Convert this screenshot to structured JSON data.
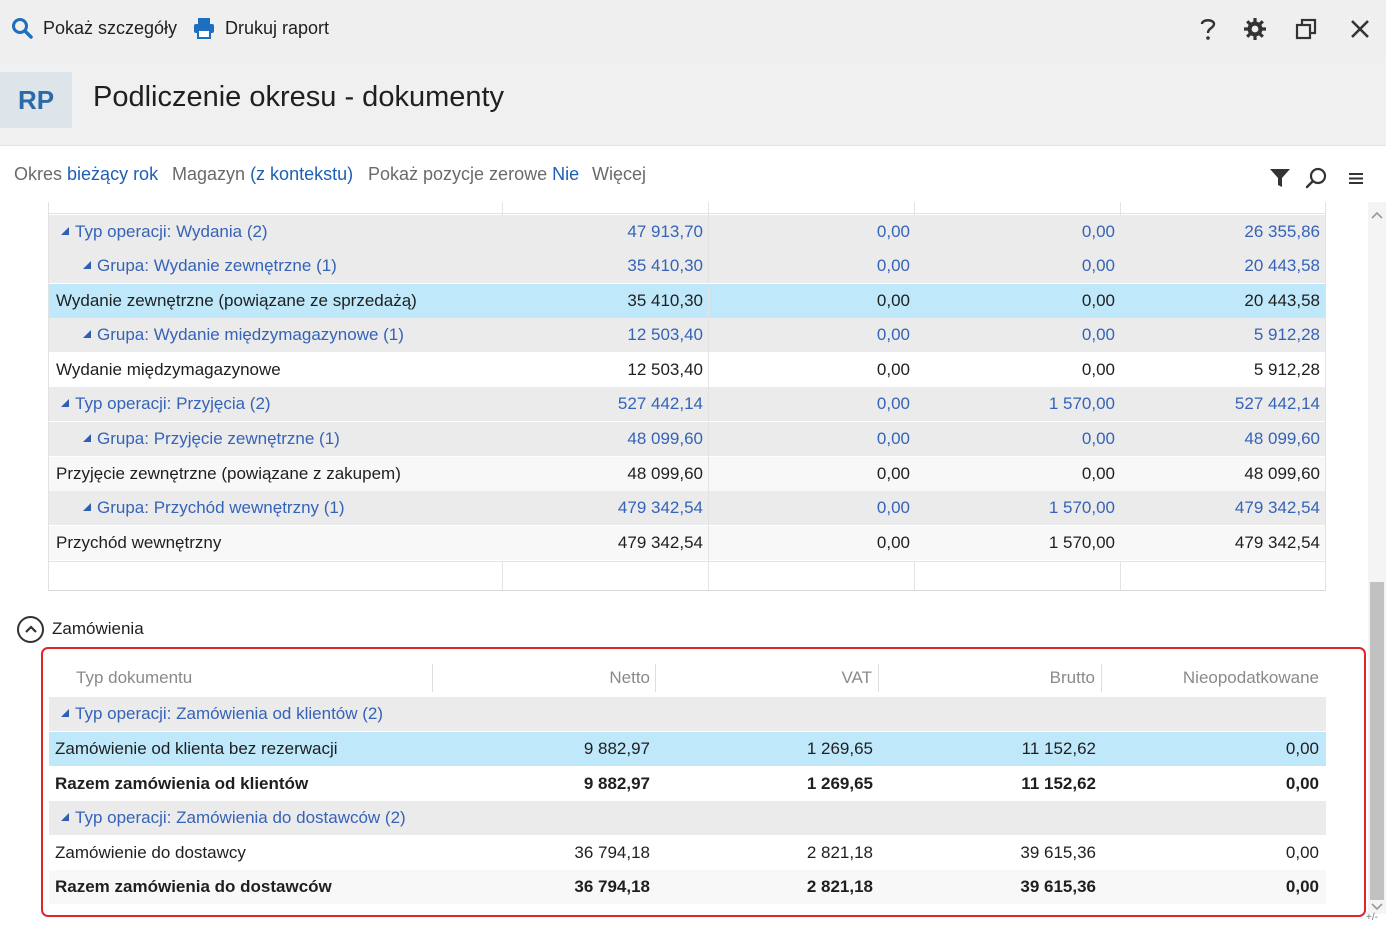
{
  "toolbar": {
    "show_details": "Pokaż szczegóły",
    "print_report": "Drukuj raport"
  },
  "header": {
    "badge": "RP",
    "title": "Podliczenie okresu - dokumenty"
  },
  "filters": {
    "period_label": "Okres",
    "period_value": "bieżący rok",
    "warehouse_label": "Magazyn",
    "warehouse_value": "(z kontekstu)",
    "zero_label": "Pokaż pozycje zerowe",
    "zero_value": "Nie",
    "more": "Więcej"
  },
  "upper_rows": [
    {
      "kind": "type",
      "label": "Typ operacji: Wydania (2)",
      "v1": "47 913,70",
      "v2": "0,00",
      "v3": "0,00",
      "v4": "26 355,86"
    },
    {
      "kind": "group",
      "label": "Grupa: Wydanie zewnętrzne (1)",
      "v1": "35 410,30",
      "v2": "0,00",
      "v3": "0,00",
      "v4": "20 443,58"
    },
    {
      "kind": "selected",
      "label": "Wydanie zewnętrzne (powiązane ze sprzedażą)",
      "v1": "35 410,30",
      "v2": "0,00",
      "v3": "0,00",
      "v4": "20 443,58"
    },
    {
      "kind": "group",
      "label": "Grupa: Wydanie międzymagazynowe (1)",
      "v1": "12 503,40",
      "v2": "0,00",
      "v3": "0,00",
      "v4": "5 912,28"
    },
    {
      "kind": "white",
      "label": "Wydanie międzymagazynowe",
      "v1": "12 503,40",
      "v2": "0,00",
      "v3": "0,00",
      "v4": "5 912,28"
    },
    {
      "kind": "type",
      "label": "Typ operacji: Przyjęcia (2)",
      "v1": "527 442,14",
      "v2": "0,00",
      "v3": "1 570,00",
      "v4": "527 442,14"
    },
    {
      "kind": "group",
      "label": "Grupa: Przyjęcie zewnętrzne (1)",
      "v1": "48 099,60",
      "v2": "0,00",
      "v3": "0,00",
      "v4": "48 099,60"
    },
    {
      "kind": "alt",
      "label": "Przyjęcie zewnętrzne (powiązane z zakupem)",
      "v1": "48 099,60",
      "v2": "0,00",
      "v3": "0,00",
      "v4": "48 099,60"
    },
    {
      "kind": "group",
      "label": "Grupa: Przychód wewnętrzny (1)",
      "v1": "479 342,54",
      "v2": "0,00",
      "v3": "1 570,00",
      "v4": "479 342,54"
    },
    {
      "kind": "alt",
      "label": "Przychód wewnętrzny",
      "v1": "479 342,54",
      "v2": "0,00",
      "v3": "1 570,00",
      "v4": "479 342,54"
    }
  ],
  "section": {
    "title": "Zamówienia"
  },
  "orders": {
    "columns": [
      "Typ dokumentu",
      "Netto",
      "VAT",
      "Brutto",
      "Nieopodatkowane"
    ],
    "rows": [
      {
        "kind": "type",
        "label": "Typ operacji: Zamówienia od klientów (2)",
        "netto": "",
        "vat": "",
        "brutto": "",
        "nieop": ""
      },
      {
        "kind": "selected",
        "label": "Zamówienie od klienta bez rezerwacji",
        "netto": "9 882,97",
        "vat": "1 269,65",
        "brutto": "11 152,62",
        "nieop": "0,00"
      },
      {
        "kind": "total",
        "label": "Razem zamówienia od klientów",
        "netto": "9 882,97",
        "vat": "1 269,65",
        "brutto": "11 152,62",
        "nieop": "0,00"
      },
      {
        "kind": "type",
        "label": "Typ operacji: Zamówienia do dostawców (2)",
        "netto": "",
        "vat": "",
        "brutto": "",
        "nieop": ""
      },
      {
        "kind": "white",
        "label": "Zamówienie do dostawcy",
        "netto": "36 794,18",
        "vat": "2 821,18",
        "brutto": "39 615,36",
        "nieop": "0,00"
      },
      {
        "kind": "total-alt",
        "label": "Razem zamówienia do dostawców",
        "netto": "36 794,18",
        "vat": "2 821,18",
        "brutto": "39 615,36",
        "nieop": "0,00"
      }
    ]
  },
  "corner": "+/-",
  "colors": {
    "accent": "#1e5fb4",
    "group_text": "#3563b8",
    "selection": "#bfe9fb",
    "highlight_border": "#e0262b"
  }
}
